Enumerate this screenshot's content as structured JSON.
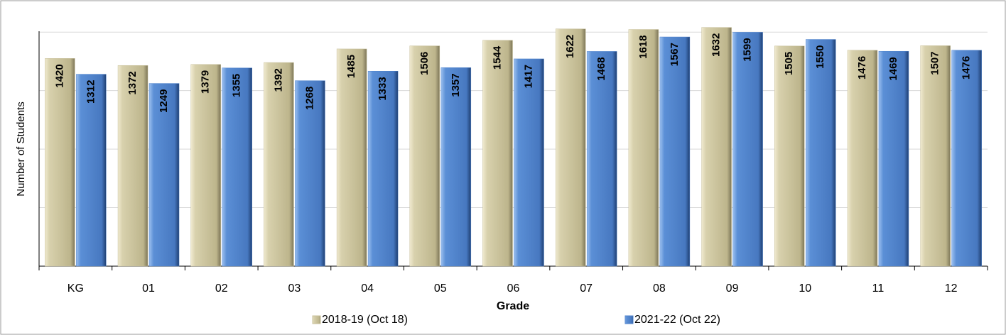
{
  "chart_data": {
    "type": "bar",
    "x_label": "Grade",
    "y_label": "Number of Students",
    "categories": [
      "KG",
      "01",
      "02",
      "03",
      "04",
      "05",
      "06",
      "07",
      "08",
      "09",
      "10",
      "11",
      "12"
    ],
    "series": [
      {
        "name": "2018-19 (Oct 18)",
        "color": "#c8c09a",
        "values": [
          1420,
          1372,
          1379,
          1392,
          1485,
          1506,
          1544,
          1622,
          1618,
          1632,
          1505,
          1476,
          1507
        ]
      },
      {
        "name": "2021-22 (Oct 22)",
        "color": "#4f83cc",
        "values": [
          1312,
          1249,
          1355,
          1268,
          1333,
          1357,
          1417,
          1468,
          1567,
          1599,
          1550,
          1469,
          1476
        ]
      }
    ],
    "ylim": [
      0,
      1800
    ],
    "yticks": [
      0,
      400,
      800,
      1200,
      1600
    ],
    "grid": true
  }
}
